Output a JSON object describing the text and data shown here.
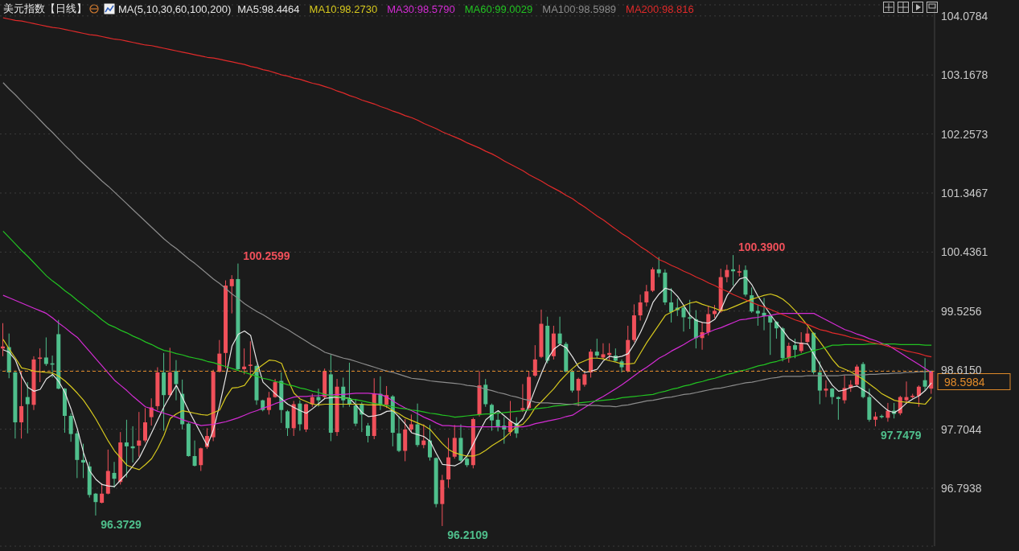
{
  "chart_data": {
    "type": "candlestick",
    "title": "美元指数【日线】",
    "legend_title": "MA(5,10,30,60,100,200)",
    "legend": "top",
    "tick_labels": "y",
    "grid": "y",
    "ylim": [
      95.9,
      104.25
    ],
    "yticks": [
      96.7938,
      97.7044,
      {
        "value": 98.615,
        "label": "98.6150"
      },
      99.5256,
      100.4361,
      101.3467,
      102.2573,
      103.1678,
      104.0784
    ],
    "categories": [
      null,
      null,
      null,
      null,
      null,
      null,
      null,
      null,
      null,
      null,
      null,
      null,
      null,
      null,
      null,
      null,
      null,
      null,
      null,
      null,
      null,
      null,
      null,
      null,
      null,
      null,
      null,
      null,
      null,
      null,
      null,
      null,
      null,
      null,
      null,
      null,
      null,
      null,
      null,
      null,
      null,
      null,
      null,
      null,
      null,
      null,
      null,
      null,
      null,
      null,
      null,
      null,
      null,
      null,
      null,
      null,
      null,
      null,
      null,
      null,
      null,
      null,
      null,
      null,
      null,
      null,
      null,
      null,
      null,
      null,
      null,
      null,
      null,
      null,
      null,
      null,
      null,
      null,
      null,
      null,
      null,
      null,
      null,
      null,
      null,
      null,
      null,
      null,
      null,
      null,
      null,
      null,
      null,
      null,
      null,
      null,
      null,
      null,
      null,
      null,
      null,
      null,
      null,
      null,
      null,
      null,
      null,
      null,
      null,
      null,
      null,
      null,
      null,
      null,
      null,
      null,
      null,
      null,
      null,
      null,
      null,
      null,
      null,
      null,
      null,
      null,
      null,
      null,
      null,
      null,
      null,
      null,
      null,
      null,
      null,
      null,
      null,
      null,
      null,
      null,
      null,
      null,
      null,
      null,
      null,
      null,
      null,
      null,
      null,
      null,
      null
    ],
    "ohlc": [
      [
        98.95,
        99.34,
        98.83,
        98.98
      ],
      [
        98.97,
        99.18,
        98.49,
        98.58
      ],
      [
        98.58,
        98.6,
        97.56,
        97.81
      ],
      [
        97.81,
        98.59,
        97.56,
        98.06
      ],
      [
        98.2,
        98.43,
        97.64,
        98.09
      ],
      [
        98.08,
        98.83,
        98.0,
        98.78
      ],
      [
        98.79,
        98.95,
        98.43,
        98.81
      ],
      [
        98.81,
        99.12,
        98.68,
        98.71
      ],
      [
        98.72,
        98.84,
        98.5,
        98.7
      ],
      [
        99.17,
        99.39,
        98.32,
        98.33
      ],
      [
        98.33,
        98.34,
        97.65,
        97.91
      ],
      [
        97.91,
        97.95,
        97.51,
        97.63
      ],
      [
        97.64,
        97.68,
        96.95,
        97.23
      ],
      [
        97.23,
        97.48,
        96.95,
        97.19
      ],
      [
        97.13,
        97.2,
        96.65,
        96.69
      ],
      [
        96.71,
        96.72,
        96.3729,
        96.58
      ],
      [
        96.57,
        96.87,
        96.56,
        96.71
      ],
      [
        96.71,
        97.39,
        96.7,
        97.06
      ],
      [
        97.03,
        97.2,
        96.8,
        96.94
      ],
      [
        96.89,
        97.66,
        96.85,
        97.5
      ],
      [
        97.5,
        97.85,
        96.96,
        97.44
      ],
      [
        97.44,
        97.75,
        97.19,
        97.41
      ],
      [
        97.45,
        97.97,
        97.28,
        97.53
      ],
      [
        97.53,
        98.03,
        97.5,
        97.81
      ],
      [
        97.89,
        98.18,
        97.76,
        98.04
      ],
      [
        98.06,
        98.66,
        98.0,
        98.58
      ],
      [
        98.58,
        98.88,
        97.68,
        98.23
      ],
      [
        98.23,
        98.96,
        98.2,
        98.58
      ],
      [
        98.6,
        98.77,
        98.15,
        98.4
      ],
      [
        98.25,
        98.47,
        97.7,
        97.78
      ],
      [
        97.79,
        97.81,
        97.28,
        97.29
      ],
      [
        97.29,
        97.53,
        97.13,
        97.14
      ],
      [
        97.15,
        97.42,
        97.06,
        97.41
      ],
      [
        97.43,
        97.72,
        97.4,
        97.6
      ],
      [
        97.58,
        98.62,
        97.52,
        98.59
      ],
      [
        98.59,
        99.08,
        98.58,
        98.87
      ],
      [
        98.88,
        100.0,
        98.64,
        99.92
      ],
      [
        99.91,
        100.08,
        99.49,
        100.02
      ],
      [
        100.02,
        100.2599,
        98.62,
        98.63
      ],
      [
        98.63,
        98.95,
        98.55,
        98.67
      ],
      [
        98.68,
        99.06,
        98.5,
        98.7
      ],
      [
        98.68,
        98.7,
        98.08,
        98.15
      ],
      [
        98.15,
        98.16,
        97.98,
        98.0
      ],
      [
        98.0,
        98.28,
        97.93,
        98.19
      ],
      [
        98.2,
        98.48,
        98.19,
        98.43
      ],
      [
        98.45,
        98.58,
        97.8,
        98.0
      ],
      [
        97.98,
        98.0,
        97.6,
        97.72
      ],
      [
        97.72,
        98.14,
        97.6,
        98.09
      ],
      [
        98.1,
        98.15,
        97.68,
        97.78
      ],
      [
        97.7,
        98.1,
        97.66,
        98.09
      ],
      [
        98.09,
        98.25,
        98.05,
        98.2
      ],
      [
        98.2,
        98.33,
        98.05,
        98.15
      ],
      [
        98.2,
        98.64,
        98.18,
        98.6
      ],
      [
        98.55,
        98.85,
        97.52,
        97.65
      ],
      [
        97.66,
        98.48,
        97.6,
        98.36
      ],
      [
        98.36,
        98.5,
        98.04,
        98.15
      ],
      [
        98.18,
        98.73,
        98.05,
        98.09
      ],
      [
        98.07,
        98.17,
        97.75,
        97.79
      ],
      [
        98.09,
        98.12,
        97.66,
        97.93
      ],
      [
        97.76,
        97.8,
        97.5,
        97.6
      ],
      [
        97.6,
        98.49,
        97.55,
        98.25
      ],
      [
        98.25,
        98.52,
        98.0,
        98.07
      ],
      [
        98.08,
        98.37,
        98.03,
        98.23
      ],
      [
        98.21,
        98.23,
        97.44,
        97.65
      ],
      [
        97.64,
        97.9,
        97.35,
        97.37
      ],
      [
        97.37,
        97.86,
        97.21,
        97.7
      ],
      [
        97.7,
        97.93,
        97.66,
        97.78
      ],
      [
        97.78,
        98.1,
        97.43,
        97.46
      ],
      [
        97.46,
        97.78,
        97.41,
        97.53
      ],
      [
        97.53,
        97.77,
        97.22,
        97.27
      ],
      [
        97.26,
        97.27,
        96.5,
        96.55
      ],
      [
        96.55,
        97.0,
        96.2109,
        96.92
      ],
      [
        96.93,
        97.57,
        96.8,
        97.27
      ],
      [
        97.28,
        97.77,
        97.25,
        97.57
      ],
      [
        97.57,
        97.78,
        97.2,
        97.22
      ],
      [
        97.25,
        97.3,
        97.12,
        97.15
      ],
      [
        97.15,
        97.88,
        97.1,
        97.86
      ],
      [
        97.93,
        98.6,
        97.9,
        98.38
      ],
      [
        98.39,
        98.48,
        98.05,
        98.09
      ],
      [
        98.08,
        98.1,
        97.68,
        97.84
      ],
      [
        97.85,
        97.99,
        97.67,
        97.74
      ],
      [
        97.76,
        97.89,
        97.48,
        97.7
      ],
      [
        97.66,
        98.14,
        97.6,
        97.83
      ],
      [
        97.8,
        97.89,
        97.57,
        97.64
      ],
      [
        98.0,
        98.4,
        97.97,
        98.03
      ],
      [
        98.03,
        98.6,
        98.0,
        98.51
      ],
      [
        98.53,
        99.0,
        98.51,
        98.78
      ],
      [
        98.82,
        99.55,
        98.8,
        99.33
      ],
      [
        99.3,
        99.44,
        98.72,
        98.76
      ],
      [
        98.83,
        99.3,
        98.78,
        99.18
      ],
      [
        99.18,
        99.44,
        99.0,
        99.02
      ],
      [
        99.02,
        99.05,
        98.58,
        98.59
      ],
      [
        98.59,
        98.62,
        98.27,
        98.3
      ],
      [
        98.3,
        98.5,
        98.06,
        98.48
      ],
      [
        98.39,
        98.57,
        98.36,
        98.55
      ],
      [
        98.58,
        98.94,
        98.5,
        98.9
      ],
      [
        98.9,
        99.1,
        98.8,
        98.84
      ],
      [
        98.81,
        99.03,
        98.78,
        98.86
      ],
      [
        98.85,
        99.03,
        98.77,
        98.88
      ],
      [
        98.84,
        98.95,
        98.75,
        98.76
      ],
      [
        98.75,
        98.78,
        98.58,
        98.66
      ],
      [
        98.6,
        99.3,
        98.58,
        99.08
      ],
      [
        99.08,
        99.63,
        99.05,
        99.46
      ],
      [
        99.46,
        99.78,
        99.38,
        99.66
      ],
      [
        99.66,
        99.93,
        99.6,
        99.83
      ],
      [
        99.84,
        100.2,
        99.82,
        100.17
      ],
      [
        100.17,
        100.36,
        100.05,
        100.11
      ],
      [
        100.12,
        100.17,
        99.62,
        99.66
      ],
      [
        99.66,
        99.88,
        99.35,
        99.51
      ],
      [
        99.58,
        99.72,
        99.45,
        99.54
      ],
      [
        99.58,
        99.6,
        99.21,
        99.43
      ],
      [
        99.43,
        99.7,
        99.25,
        99.41
      ],
      [
        99.4,
        99.54,
        98.95,
        99.11
      ],
      [
        99.11,
        99.35,
        98.93,
        99.2
      ],
      [
        99.2,
        99.61,
        99.15,
        99.48
      ],
      [
        99.48,
        99.62,
        99.42,
        99.53
      ],
      [
        99.52,
        100.18,
        99.5,
        100.05
      ],
      [
        100.05,
        100.24,
        99.97,
        100.16
      ],
      [
        100.17,
        100.39,
        99.92,
        100.14
      ],
      [
        100.12,
        100.24,
        100.06,
        100.14
      ],
      [
        100.16,
        100.23,
        99.75,
        99.78
      ],
      [
        99.77,
        99.89,
        99.5,
        99.52
      ],
      [
        99.53,
        99.62,
        99.3,
        99.49
      ],
      [
        99.5,
        99.73,
        99.23,
        99.45
      ],
      [
        99.45,
        99.47,
        98.85,
        99.35
      ],
      [
        99.36,
        99.37,
        99.1,
        99.26
      ],
      [
        99.26,
        99.28,
        98.75,
        98.8
      ],
      [
        98.8,
        99.04,
        98.73,
        98.99
      ],
      [
        99.0,
        99.1,
        98.8,
        98.93
      ],
      [
        98.91,
        99.2,
        98.88,
        99.04
      ],
      [
        99.05,
        99.28,
        99.0,
        99.18
      ],
      [
        99.19,
        99.2,
        98.55,
        98.58
      ],
      [
        98.58,
        98.75,
        98.09,
        98.3
      ],
      [
        98.3,
        98.46,
        98.2,
        98.33
      ],
      [
        98.33,
        98.34,
        98.09,
        98.2
      ],
      [
        98.2,
        98.21,
        97.85,
        98.17
      ],
      [
        98.15,
        98.53,
        98.1,
        98.34
      ],
      [
        98.34,
        98.46,
        98.28,
        98.39
      ],
      [
        98.39,
        98.7,
        98.36,
        98.67
      ],
      [
        98.71,
        98.74,
        98.18,
        98.2
      ],
      [
        98.2,
        98.33,
        97.82,
        97.85
      ],
      [
        97.85,
        97.97,
        97.7479,
        97.9
      ],
      [
        97.91,
        97.93,
        97.87,
        97.89
      ],
      [
        97.88,
        98.11,
        97.82,
        97.99
      ],
      [
        97.99,
        98.11,
        97.87,
        97.94
      ],
      [
        97.95,
        98.22,
        97.92,
        98.2
      ],
      [
        98.15,
        98.44,
        98.1,
        98.2
      ],
      [
        98.2,
        98.25,
        98.18,
        98.22
      ],
      [
        98.22,
        98.38,
        98.05,
        98.36
      ],
      [
        98.46,
        98.8,
        98.3,
        98.36
      ],
      [
        98.33,
        98.6,
        98.25,
        98.5984
      ]
    ],
    "colors": [
      "#f0505a",
      "#4fbf8c",
      "#4fbf8c",
      "#f0505a",
      "#4fbf8c",
      "#f0505a",
      "#f0505a",
      "#4fbf8c",
      "#4fbf8c",
      "#4fbf8c",
      "#4fbf8c",
      "#4fbf8c",
      "#4fbf8c",
      "#4fbf8c",
      "#4fbf8c",
      "#4fbf8c",
      "#f0505a",
      "#f0505a",
      "#4fbf8c",
      "#f0505a",
      "#4fbf8c",
      "#4fbf8c",
      "#f0505a",
      "#f0505a",
      "#f0505a",
      "#f0505a",
      "#4fbf8c",
      "#f0505a",
      "#4fbf8c",
      "#4fbf8c",
      "#4fbf8c",
      "#4fbf8c",
      "#f0505a",
      "#f0505a",
      "#f0505a",
      "#f0505a",
      "#f0505a",
      "#f0505a",
      "#4fbf8c",
      "#f0505a",
      "#f0505a",
      "#4fbf8c",
      "#4fbf8c",
      "#f0505a",
      "#f0505a",
      "#4fbf8c",
      "#4fbf8c",
      "#f0505a",
      "#4fbf8c",
      "#f0505a",
      "#f0505a",
      "#4fbf8c",
      "#f0505a",
      "#4fbf8c",
      "#f0505a",
      "#4fbf8c",
      "#4fbf8c",
      "#4fbf8c",
      "#4fbf8c",
      "#4fbf8c",
      "#f0505a",
      "#4fbf8c",
      "#f0505a",
      "#4fbf8c",
      "#4fbf8c",
      "#f0505a",
      "#f0505a",
      "#4fbf8c",
      "#f0505a",
      "#4fbf8c",
      "#4fbf8c",
      "#f0505a",
      "#f0505a",
      "#f0505a",
      "#4fbf8c",
      "#4fbf8c",
      "#f0505a",
      "#f0505a",
      "#4fbf8c",
      "#4fbf8c",
      "#4fbf8c",
      "#4fbf8c",
      "#f0505a",
      "#4fbf8c",
      "#f0505a",
      "#f0505a",
      "#f0505a",
      "#f0505a",
      "#4fbf8c",
      "#f0505a",
      "#4fbf8c",
      "#4fbf8c",
      "#4fbf8c",
      "#f0505a",
      "#f0505a",
      "#f0505a",
      "#4fbf8c",
      "#f0505a",
      "#f0505a",
      "#4fbf8c",
      "#4fbf8c",
      "#f0505a",
      "#f0505a",
      "#f0505a",
      "#f0505a",
      "#f0505a",
      "#4fbf8c",
      "#4fbf8c",
      "#4fbf8c",
      "#4fbf8c",
      "#4fbf8c",
      "#4fbf8c",
      "#4fbf8c",
      "#f0505a",
      "#f0505a",
      "#f0505a",
      "#f0505a",
      "#f0505a",
      "#4fbf8c",
      "#f0505a",
      "#4fbf8c",
      "#4fbf8c",
      "#4fbf8c",
      "#4fbf8c",
      "#4fbf8c",
      "#4fbf8c",
      "#4fbf8c",
      "#f0505a",
      "#4fbf8c",
      "#f0505a",
      "#f0505a",
      "#4fbf8c",
      "#4fbf8c",
      "#f0505a",
      "#4fbf8c",
      "#4fbf8c",
      "#f0505a",
      "#f0505a",
      "#f0505a",
      "#4fbf8c",
      "#4fbf8c",
      "#f0505a",
      "#4fbf8c",
      "#f0505a",
      "#4fbf8c",
      "#f0505a",
      "#f0505a",
      "#f0505a",
      "#f0505a",
      "#4fbf8c",
      "#f0505a"
    ],
    "series": [
      {
        "type": "line",
        "name": "MA5:98.4464",
        "color": "#e6e6e6",
        "values": [
          98.93,
          98.89,
          98.77,
          98.52,
          98.35,
          98.29,
          98.32,
          98.48,
          98.55,
          98.44,
          98.27,
          98.01,
          97.71,
          97.34,
          97.06,
          96.93,
          96.85,
          96.83,
          96.82,
          96.92,
          97.02,
          97.14,
          97.26,
          97.45,
          97.65,
          97.85,
          98.05,
          98.22,
          98.38,
          98.19,
          97.99,
          97.81,
          97.63,
          97.45,
          97.7,
          98.08,
          98.52,
          98.99,
          99.17,
          99.22,
          99.15,
          98.75,
          98.43,
          98.34,
          98.25,
          98.17,
          98.09,
          98.04,
          97.99,
          97.95,
          98.02,
          98.1,
          98.18,
          98.19,
          98.2,
          98.19,
          98.18,
          98.08,
          97.96,
          97.9,
          97.91,
          97.93,
          97.98,
          97.99,
          97.89,
          97.78,
          97.65,
          97.62,
          97.59,
          97.52,
          97.33,
          97.16,
          97.15,
          97.14,
          97.19,
          97.3,
          97.48,
          97.67,
          97.85,
          97.93,
          97.99,
          97.91,
          97.83,
          97.77,
          97.87,
          98.08,
          98.33,
          98.57,
          98.79,
          98.94,
          99.01,
          98.96,
          98.82,
          98.66,
          98.58,
          98.6,
          98.63,
          98.76,
          98.83,
          98.81,
          98.83,
          98.87,
          99.02,
          99.2,
          99.41,
          99.66,
          99.79,
          99.88,
          99.85,
          99.75,
          99.61,
          99.46,
          99.38,
          99.35,
          99.34,
          99.4,
          99.55,
          99.77,
          99.9,
          100.02,
          100.05,
          99.93,
          99.75,
          99.61,
          99.47,
          99.34,
          99.23,
          99.1,
          99.04,
          99.03,
          99.02,
          98.86,
          98.7,
          98.52,
          98.38,
          98.29,
          98.31,
          98.35,
          98.37,
          98.31,
          98.25,
          98.16,
          98.07,
          97.99,
          97.96,
          98.02,
          98.11,
          98.17,
          98.22,
          98.3,
          98.42
        ]
      },
      {
        "type": "line",
        "name": "MA10:98.2730",
        "color": "#d6c81e",
        "values": [
          99.09,
          98.94,
          98.8,
          98.65,
          98.63,
          98.6,
          98.59,
          98.58,
          98.57,
          98.52,
          98.45,
          98.36,
          98.26,
          98.15,
          98.01,
          97.86,
          97.69,
          97.52,
          97.37,
          97.26,
          97.15,
          97.11,
          97.08,
          97.16,
          97.25,
          97.41,
          97.61,
          97.87,
          97.94,
          97.99,
          97.97,
          97.95,
          97.93,
          97.92,
          97.96,
          98.0,
          98.2,
          98.34,
          98.35,
          98.38,
          98.51,
          98.63,
          98.7,
          98.77,
          98.76,
          98.72,
          98.47,
          98.26,
          98.17,
          98.13,
          98.09,
          98.08,
          98.09,
          98.09,
          98.09,
          98.09,
          98.09,
          98.09,
          98.09,
          98.08,
          98.08,
          98.08,
          98.05,
          97.99,
          97.94,
          97.88,
          97.84,
          97.8,
          97.76,
          97.7,
          97.59,
          97.48,
          97.39,
          97.34,
          97.31,
          97.29,
          97.29,
          97.32,
          97.38,
          97.45,
          97.51,
          97.57,
          97.66,
          97.75,
          97.78,
          97.89,
          98.04,
          98.13,
          98.23,
          98.33,
          98.45,
          98.55,
          98.64,
          98.72,
          98.76,
          98.8,
          98.8,
          98.79,
          98.76,
          98.74,
          98.71,
          98.71,
          98.72,
          98.88,
          99.04,
          99.18,
          99.32,
          99.46,
          99.51,
          99.56,
          99.61,
          99.65,
          99.67,
          99.63,
          99.6,
          99.57,
          99.53,
          99.55,
          99.59,
          99.63,
          99.67,
          99.71,
          99.74,
          99.77,
          99.79,
          99.76,
          99.71,
          99.63,
          99.53,
          99.42,
          99.3,
          99.17,
          99.05,
          98.92,
          98.78,
          98.67,
          98.63,
          98.59,
          98.53,
          98.47,
          98.4,
          98.33,
          98.25,
          98.2,
          98.15,
          98.13,
          98.12,
          98.11,
          98.1,
          98.09,
          98.2
        ]
      },
      {
        "type": "line",
        "name": "MA30:98.5790",
        "color": "#d42cd4",
        "values": [
          99.77,
          99.73,
          99.69,
          99.65,
          99.61,
          99.57,
          99.53,
          99.49,
          99.42,
          99.34,
          99.27,
          99.19,
          99.12,
          99.01,
          98.9,
          98.79,
          98.68,
          98.57,
          98.46,
          98.38,
          98.3,
          98.21,
          98.13,
          98.05,
          98.02,
          97.98,
          97.95,
          97.92,
          97.89,
          97.85,
          97.82,
          97.79,
          97.76,
          97.77,
          97.78,
          97.8,
          97.82,
          97.85,
          97.88,
          97.92,
          97.96,
          97.99,
          98.03,
          98.06,
          98.1,
          98.13,
          98.17,
          98.2,
          98.21,
          98.21,
          98.22,
          98.22,
          98.23,
          98.23,
          98.24,
          98.24,
          98.25,
          98.26,
          98.26,
          98.26,
          98.25,
          98.24,
          98.2,
          98.14,
          98.08,
          98.03,
          97.99,
          97.94,
          97.89,
          97.85,
          97.8,
          97.76,
          97.76,
          97.75,
          97.75,
          97.74,
          97.74,
          97.74,
          97.74,
          97.74,
          97.74,
          97.74,
          97.74,
          97.74,
          97.74,
          97.76,
          97.79,
          97.81,
          97.83,
          97.85,
          97.87,
          97.9,
          97.92,
          97.98,
          98.04,
          98.1,
          98.16,
          98.21,
          98.27,
          98.33,
          98.39,
          98.46,
          98.53,
          98.6,
          98.66,
          98.73,
          98.8,
          98.85,
          98.91,
          98.96,
          99.01,
          99.07,
          99.12,
          99.16,
          99.2,
          99.24,
          99.27,
          99.31,
          99.35,
          99.39,
          99.4,
          99.42,
          99.43,
          99.45,
          99.46,
          99.48,
          99.49,
          99.49,
          99.49,
          99.49,
          99.49,
          99.49,
          99.44,
          99.39,
          99.34,
          99.29,
          99.24,
          99.21,
          99.17,
          99.14,
          99.1,
          99.07,
          99.03,
          99.0,
          98.94,
          98.88,
          98.82,
          98.76,
          98.7,
          98.64,
          98.58
        ]
      },
      {
        "type": "line",
        "name": "MA60:99.0029",
        "color": "#22c322",
        "values": [
          100.76,
          100.66,
          100.56,
          100.46,
          100.37,
          100.27,
          100.17,
          100.07,
          99.99,
          99.92,
          99.84,
          99.77,
          99.69,
          99.62,
          99.54,
          99.47,
          99.39,
          99.32,
          99.28,
          99.23,
          99.19,
          99.14,
          99.1,
          99.05,
          99.01,
          98.96,
          98.92,
          98.9,
          98.87,
          98.85,
          98.82,
          98.8,
          98.78,
          98.75,
          98.73,
          98.7,
          98.67,
          98.64,
          98.61,
          98.58,
          98.55,
          98.52,
          98.49,
          98.47,
          98.44,
          98.42,
          98.39,
          98.37,
          98.34,
          98.32,
          98.29,
          98.27,
          98.24,
          98.22,
          98.21,
          98.19,
          98.17,
          98.16,
          98.14,
          98.12,
          98.1,
          98.09,
          98.07,
          98.05,
          98.03,
          98.02,
          98.0,
          97.99,
          97.97,
          97.95,
          97.94,
          97.92,
          97.91,
          97.89,
          97.9,
          97.91,
          97.92,
          97.93,
          97.94,
          97.94,
          97.95,
          97.96,
          97.97,
          97.98,
          97.99,
          98.0,
          98.02,
          98.03,
          98.04,
          98.06,
          98.07,
          98.08,
          98.09,
          98.11,
          98.12,
          98.13,
          98.14,
          98.15,
          98.16,
          98.17,
          98.19,
          98.2,
          98.21,
          98.22,
          98.23,
          98.24,
          98.27,
          98.29,
          98.32,
          98.34,
          98.37,
          98.39,
          98.42,
          98.44,
          98.47,
          98.49,
          98.52,
          98.55,
          98.57,
          98.6,
          98.62,
          98.65,
          98.68,
          98.7,
          98.73,
          98.75,
          98.78,
          98.81,
          98.83,
          98.86,
          98.89,
          98.92,
          98.94,
          98.97,
          99.0,
          99.0,
          99.01,
          99.01,
          99.01,
          99.01,
          99.02,
          99.02,
          99.02,
          99.02,
          99.02,
          99.01,
          99.01,
          99.01,
          99.01,
          99.0,
          99.0
        ]
      },
      {
        "type": "line",
        "name": "MA100:98.5989",
        "color": "#8c8c8c",
        "values": [
          103.05,
          102.95,
          102.86,
          102.76,
          102.66,
          102.57,
          102.47,
          102.37,
          102.28,
          102.18,
          102.08,
          101.99,
          101.89,
          101.8,
          101.71,
          101.62,
          101.53,
          101.45,
          101.36,
          101.27,
          101.18,
          101.09,
          101.0,
          100.91,
          100.82,
          100.73,
          100.64,
          100.56,
          100.49,
          100.41,
          100.33,
          100.26,
          100.18,
          100.1,
          100.02,
          99.95,
          99.87,
          99.79,
          99.72,
          99.64,
          99.58,
          99.52,
          99.47,
          99.41,
          99.35,
          99.29,
          99.24,
          99.18,
          99.12,
          99.06,
          99.0,
          98.95,
          98.89,
          98.86,
          98.83,
          98.8,
          98.78,
          98.75,
          98.72,
          98.69,
          98.66,
          98.63,
          98.6,
          98.58,
          98.55,
          98.52,
          98.49,
          98.48,
          98.47,
          98.45,
          98.44,
          98.43,
          98.42,
          98.41,
          98.4,
          98.38,
          98.37,
          98.35,
          98.32,
          98.3,
          98.27,
          98.25,
          98.22,
          98.2,
          98.17,
          98.15,
          98.12,
          98.11,
          98.11,
          98.1,
          98.1,
          98.09,
          98.09,
          98.08,
          98.08,
          98.07,
          98.07,
          98.06,
          98.06,
          98.05,
          98.07,
          98.08,
          98.1,
          98.12,
          98.14,
          98.15,
          98.17,
          98.19,
          98.2,
          98.22,
          98.24,
          98.25,
          98.27,
          98.29,
          98.31,
          98.33,
          98.34,
          98.36,
          98.38,
          98.4,
          98.42,
          98.43,
          98.45,
          98.47,
          98.49,
          98.5,
          98.52,
          98.52,
          98.52,
          98.52,
          98.53,
          98.53,
          98.53,
          98.53,
          98.53,
          98.53,
          98.54,
          98.54,
          98.54,
          98.54,
          98.55,
          98.55,
          98.56,
          98.56,
          98.57,
          98.57,
          98.58,
          98.58,
          98.59,
          98.59,
          98.6
        ]
      },
      {
        "type": "line",
        "name": "MA200:98.816",
        "color": "#e02a2a",
        "values": [
          104.05,
          104.03,
          104.01,
          104.0,
          103.98,
          103.96,
          103.94,
          103.92,
          103.9,
          103.89,
          103.87,
          103.85,
          103.83,
          103.81,
          103.79,
          103.78,
          103.76,
          103.74,
          103.72,
          103.71,
          103.69,
          103.67,
          103.65,
          103.63,
          103.62,
          103.6,
          103.58,
          103.56,
          103.54,
          103.52,
          103.5,
          103.48,
          103.46,
          103.44,
          103.43,
          103.41,
          103.39,
          103.37,
          103.35,
          103.33,
          103.3,
          103.28,
          103.25,
          103.23,
          103.2,
          103.17,
          103.15,
          103.12,
          103.1,
          103.07,
          103.04,
          103.02,
          102.99,
          102.96,
          102.92,
          102.89,
          102.85,
          102.82,
          102.78,
          102.75,
          102.72,
          102.68,
          102.65,
          102.61,
          102.58,
          102.54,
          102.51,
          102.47,
          102.42,
          102.38,
          102.34,
          102.29,
          102.25,
          102.21,
          102.17,
          102.12,
          102.08,
          102.04,
          101.99,
          101.95,
          101.9,
          101.84,
          101.79,
          101.74,
          101.69,
          101.63,
          101.58,
          101.53,
          101.47,
          101.42,
          101.37,
          101.31,
          101.26,
          101.19,
          101.13,
          101.06,
          100.99,
          100.93,
          100.86,
          100.79,
          100.72,
          100.66,
          100.59,
          100.52,
          100.46,
          100.39,
          100.32,
          100.28,
          100.23,
          100.19,
          100.14,
          100.1,
          100.05,
          100.01,
          99.96,
          99.92,
          99.87,
          99.83,
          99.78,
          99.74,
          99.7,
          99.66,
          99.62,
          99.59,
          99.55,
          99.51,
          99.47,
          99.43,
          99.39,
          99.36,
          99.32,
          99.28,
          99.24,
          99.22,
          99.19,
          99.17,
          99.15,
          99.12,
          99.1,
          99.08,
          99.05,
          99.03,
          99.01,
          98.98,
          98.96,
          98.94,
          98.91,
          98.89,
          98.87,
          98.84,
          98.82
        ]
      }
    ],
    "ref_lines": [
      {
        "axis": "y",
        "value": 98.5984,
        "label": "98.5984",
        "color": "#e08a2a",
        "line_style": "dashed"
      }
    ],
    "annotations": [
      "100.2599",
      "100.3900",
      "96.3729",
      "96.2109",
      "97.7479"
    ]
  }
}
